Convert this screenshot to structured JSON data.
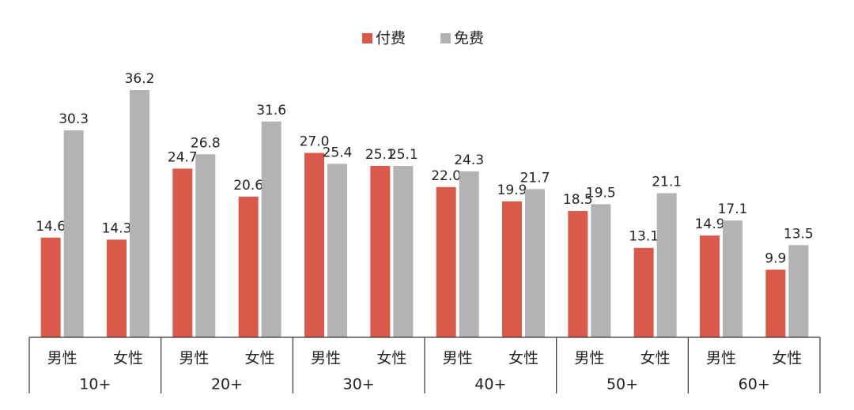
{
  "chart_data": {
    "type": "bar",
    "categories": [
      "男性",
      "女性",
      "男性",
      "女性",
      "男性",
      "女性",
      "男性",
      "女性",
      "男性",
      "女性",
      "男性",
      "女性"
    ],
    "groups": [
      "10+",
      "20+",
      "30+",
      "40+",
      "50+",
      "60+"
    ],
    "series": [
      {
        "name": "付费",
        "color": "#d95a4b",
        "values": [
          14.6,
          14.3,
          24.7,
          20.6,
          27.0,
          25.1,
          22.0,
          19.9,
          18.5,
          13.1,
          14.9,
          9.9
        ],
        "value_labels": [
          "14.6",
          "14.3",
          "24.7",
          "20.6",
          "27.0",
          "25.1",
          "22.0",
          "19.9",
          "18.5",
          "13.1",
          "14.9",
          "9.9"
        ]
      },
      {
        "name": "免费",
        "color": "#b3b3b5",
        "values": [
          30.3,
          36.2,
          26.8,
          31.6,
          25.4,
          25.1,
          24.3,
          21.7,
          19.5,
          21.1,
          17.1,
          13.5
        ],
        "value_labels": [
          "30.3",
          "36.2",
          "26.8",
          "31.6",
          "25.4",
          "25.1",
          "24.3",
          "21.7",
          "19.5",
          "21.1",
          "17.1",
          "13.5"
        ]
      }
    ],
    "legend": "top"
  }
}
